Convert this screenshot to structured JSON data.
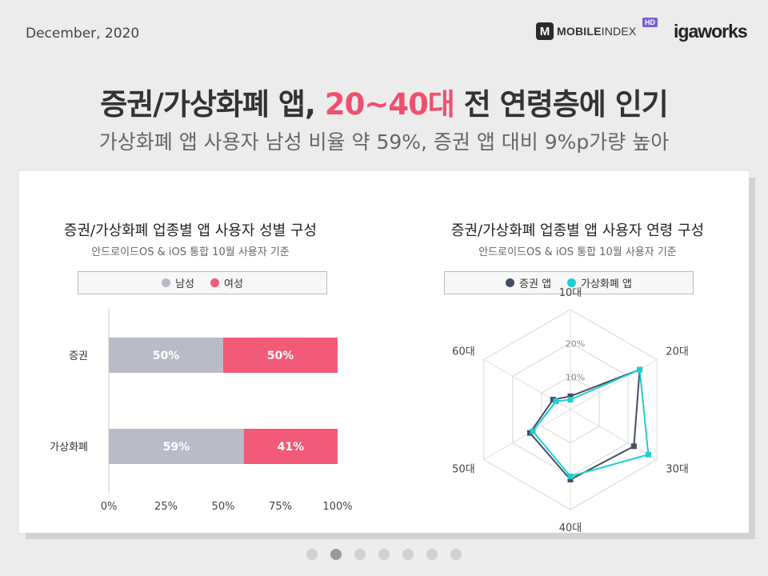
{
  "header": {
    "date": "December, 2020",
    "logo_mark": "M",
    "logo_text_bold": "MOBILE",
    "logo_text_light": "INDEX",
    "logo_badge": "HD",
    "partner_logo": "igaworks"
  },
  "headline": {
    "part1": "증권/가상화폐 앱, ",
    "highlight": "20~40대",
    "part2": " 전 연령층에 인기",
    "highlight_color": "#f0506e"
  },
  "subheadline": "가상화폐 앱 사용자 남성 비율 약 59%, 증권 앱 대비 9%p가량 높아",
  "left_panel": {
    "title": "증권/가상화폐 업종별 앱 사용자 성별 구성",
    "subtitle": "안드로이드OS  &  iOS 통합 10월 사용자 기준",
    "legend": [
      {
        "label": "남성",
        "color": "#b9bcc6"
      },
      {
        "label": "여성",
        "color": "#f25a78"
      }
    ]
  },
  "right_panel": {
    "title": "증권/가상화폐 업종별 앱 사용자 연령 구성",
    "subtitle": "안드로이드OS  &  iOS 통합 10월 사용자 기준",
    "legend": [
      {
        "label": "증권 앱",
        "color": "#454e66"
      },
      {
        "label": "가상화폐 앱",
        "color": "#1ccfcf"
      }
    ]
  },
  "chart_data": [
    {
      "type": "bar",
      "orientation": "horizontal",
      "stacked": true,
      "categories": [
        "증권",
        "가상화폐"
      ],
      "series": [
        {
          "name": "남성",
          "values": [
            50,
            59
          ],
          "labels": [
            "50%",
            "59%"
          ],
          "color": "#b9bcc6"
        },
        {
          "name": "여성",
          "values": [
            50,
            41
          ],
          "labels": [
            "50%",
            "41%"
          ],
          "color": "#f25a78"
        }
      ],
      "x_ticks": [
        "0%",
        "25%",
        "50%",
        "75%",
        "100%"
      ],
      "xlim": [
        0,
        100
      ]
    },
    {
      "type": "radar",
      "axes": [
        "10대",
        "20대",
        "30대",
        "40대",
        "50대",
        "60대"
      ],
      "ring_labels": [
        "10%",
        "20%"
      ],
      "rlim": [
        0,
        30
      ],
      "series": [
        {
          "name": "증권 앱",
          "values": [
            4,
            24,
            22,
            21,
            14,
            6
          ],
          "color": "#454e66"
        },
        {
          "name": "가상화폐 앱",
          "values": [
            3,
            24,
            27,
            20,
            13,
            5
          ],
          "color": "#1ccfcf"
        }
      ]
    }
  ],
  "pager": {
    "count": 7,
    "active_index": 1
  }
}
